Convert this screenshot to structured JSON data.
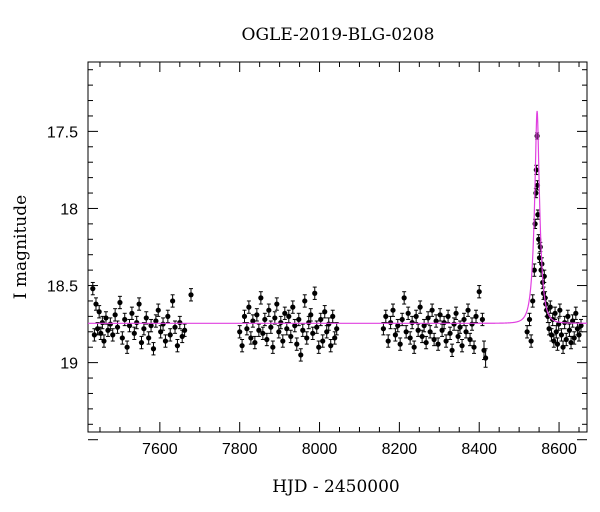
{
  "chart_data": {
    "type": "scatter",
    "title": "OGLE-2019-BLG-0208",
    "xlabel": "HJD - 2450000",
    "ylabel": "I magnitude",
    "xlim": [
      7420,
      8670
    ],
    "ylim": [
      19.45,
      17.05
    ],
    "y_inverted": true,
    "grid": false,
    "legend": "none",
    "x_ticks": [
      7600,
      7800,
      8000,
      8200,
      8400,
      8600
    ],
    "y_ticks": [
      17.5,
      18,
      18.5,
      19
    ],
    "x_tick_labels": [
      "7600",
      "7800",
      "8000",
      "8200",
      "8400",
      "8600"
    ],
    "y_tick_labels": [
      "17.5",
      "18",
      "18.5",
      "19"
    ],
    "colors": {
      "data": "#000000",
      "model": "#e040e0"
    },
    "model": {
      "type": "microlensing",
      "t0": 8545,
      "u0": 0.29,
      "tE": 14,
      "baseline_mag": 18.745
    },
    "series": [
      {
        "points": [
          [
            7432,
            18.52,
            0.04
          ],
          [
            7436,
            18.82,
            0.04
          ],
          [
            7440,
            18.62,
            0.04
          ],
          [
            7444,
            18.78,
            0.04
          ],
          [
            7448,
            18.67,
            0.04
          ],
          [
            7452,
            18.81,
            0.04
          ],
          [
            7456,
            18.74,
            0.04
          ],
          [
            7460,
            18.86,
            0.04
          ],
          [
            7465,
            18.71,
            0.04
          ],
          [
            7470,
            18.79,
            0.04
          ],
          [
            7476,
            18.75,
            0.04
          ],
          [
            7482,
            18.82,
            0.04
          ],
          [
            7488,
            18.69,
            0.04
          ],
          [
            7494,
            18.77,
            0.04
          ],
          [
            7500,
            18.61,
            0.04
          ],
          [
            7506,
            18.84,
            0.04
          ],
          [
            7512,
            18.72,
            0.04
          ],
          [
            7518,
            18.9,
            0.04
          ],
          [
            7524,
            18.76,
            0.04
          ],
          [
            7530,
            18.68,
            0.04
          ],
          [
            7536,
            18.81,
            0.04
          ],
          [
            7542,
            18.74,
            0.04
          ],
          [
            7548,
            18.62,
            0.04
          ],
          [
            7554,
            18.87,
            0.04
          ],
          [
            7560,
            18.78,
            0.04
          ],
          [
            7566,
            18.71,
            0.04
          ],
          [
            7572,
            18.84,
            0.04
          ],
          [
            7578,
            18.76,
            0.04
          ],
          [
            7584,
            18.91,
            0.04
          ],
          [
            7590,
            18.73,
            0.04
          ],
          [
            7596,
            18.66,
            0.04
          ],
          [
            7602,
            18.8,
            0.04
          ],
          [
            7608,
            18.75,
            0.04
          ],
          [
            7614,
            18.86,
            0.04
          ],
          [
            7620,
            18.7,
            0.04
          ],
          [
            7626,
            18.82,
            0.04
          ],
          [
            7632,
            18.6,
            0.04
          ],
          [
            7638,
            18.77,
            0.04
          ],
          [
            7644,
            18.89,
            0.04
          ],
          [
            7650,
            18.74,
            0.04
          ],
          [
            7656,
            18.83,
            0.04
          ],
          [
            7662,
            18.79,
            0.04
          ],
          [
            7678,
            18.56,
            0.04
          ],
          [
            7800,
            18.8,
            0.04
          ],
          [
            7806,
            18.89,
            0.04
          ],
          [
            7812,
            18.7,
            0.04
          ],
          [
            7818,
            18.78,
            0.04
          ],
          [
            7823,
            18.64,
            0.04
          ],
          [
            7828,
            18.84,
            0.04
          ],
          [
            7833,
            18.73,
            0.04
          ],
          [
            7838,
            18.87,
            0.04
          ],
          [
            7843,
            18.69,
            0.04
          ],
          [
            7848,
            18.79,
            0.04
          ],
          [
            7853,
            18.58,
            0.04
          ],
          [
            7858,
            18.81,
            0.04
          ],
          [
            7863,
            18.72,
            0.04
          ],
          [
            7868,
            18.85,
            0.04
          ],
          [
            7873,
            18.66,
            0.04
          ],
          [
            7878,
            18.77,
            0.04
          ],
          [
            7883,
            18.9,
            0.04
          ],
          [
            7888,
            18.71,
            0.04
          ],
          [
            7893,
            18.62,
            0.04
          ],
          [
            7898,
            18.8,
            0.04
          ],
          [
            7903,
            18.74,
            0.04
          ],
          [
            7908,
            18.86,
            0.04
          ],
          [
            7913,
            18.68,
            0.04
          ],
          [
            7918,
            18.78,
            0.04
          ],
          [
            7923,
            18.7,
            0.04
          ],
          [
            7928,
            18.83,
            0.04
          ],
          [
            7933,
            18.64,
            0.04
          ],
          [
            7938,
            18.76,
            0.04
          ],
          [
            7943,
            18.88,
            0.04
          ],
          [
            7948,
            18.72,
            0.04
          ],
          [
            7953,
            18.95,
            0.04
          ],
          [
            7958,
            18.79,
            0.04
          ],
          [
            7963,
            18.6,
            0.04
          ],
          [
            7968,
            18.84,
            0.04
          ],
          [
            7973,
            18.74,
            0.04
          ],
          [
            7978,
            18.69,
            0.04
          ],
          [
            7983,
            18.81,
            0.04
          ],
          [
            7988,
            18.55,
            0.04
          ],
          [
            7993,
            18.77,
            0.04
          ],
          [
            7998,
            18.9,
            0.04
          ],
          [
            8003,
            18.72,
            0.04
          ],
          [
            8008,
            18.86,
            0.04
          ],
          [
            8013,
            18.67,
            0.04
          ],
          [
            8018,
            18.8,
            0.04
          ],
          [
            8023,
            18.75,
            0.04
          ],
          [
            8028,
            18.89,
            0.04
          ],
          [
            8033,
            18.7,
            0.04
          ],
          [
            8038,
            18.84,
            0.04
          ],
          [
            8043,
            18.78,
            0.04
          ],
          [
            8160,
            18.78,
            0.04
          ],
          [
            8166,
            18.7,
            0.04
          ],
          [
            8172,
            18.86,
            0.04
          ],
          [
            8178,
            18.74,
            0.04
          ],
          [
            8184,
            18.66,
            0.04
          ],
          [
            8190,
            18.82,
            0.04
          ],
          [
            8196,
            18.76,
            0.04
          ],
          [
            8202,
            18.88,
            0.04
          ],
          [
            8207,
            18.72,
            0.04
          ],
          [
            8212,
            18.58,
            0.04
          ],
          [
            8217,
            18.8,
            0.04
          ],
          [
            8222,
            18.68,
            0.04
          ],
          [
            8227,
            18.84,
            0.04
          ],
          [
            8232,
            18.74,
            0.04
          ],
          [
            8237,
            18.9,
            0.04
          ],
          [
            8242,
            18.7,
            0.04
          ],
          [
            8247,
            18.79,
            0.04
          ],
          [
            8252,
            18.64,
            0.04
          ],
          [
            8257,
            18.83,
            0.04
          ],
          [
            8262,
            18.76,
            0.04
          ],
          [
            8267,
            18.87,
            0.04
          ],
          [
            8272,
            18.71,
            0.04
          ],
          [
            8277,
            18.8,
            0.04
          ],
          [
            8282,
            18.66,
            0.04
          ],
          [
            8287,
            18.85,
            0.04
          ],
          [
            8292,
            18.73,
            0.04
          ],
          [
            8297,
            18.88,
            0.04
          ],
          [
            8302,
            18.69,
            0.04
          ],
          [
            8307,
            18.79,
            0.04
          ],
          [
            8312,
            18.74,
            0.04
          ],
          [
            8317,
            18.86,
            0.04
          ],
          [
            8322,
            18.7,
            0.04
          ],
          [
            8327,
            18.81,
            0.04
          ],
          [
            8332,
            18.92,
            0.04
          ],
          [
            8337,
            18.75,
            0.04
          ],
          [
            8342,
            18.68,
            0.04
          ],
          [
            8347,
            18.83,
            0.04
          ],
          [
            8352,
            18.77,
            0.04
          ],
          [
            8357,
            18.89,
            0.04
          ],
          [
            8362,
            18.72,
            0.04
          ],
          [
            8367,
            18.8,
            0.04
          ],
          [
            8372,
            18.66,
            0.04
          ],
          [
            8377,
            18.85,
            0.04
          ],
          [
            8382,
            18.75,
            0.04
          ],
          [
            8387,
            18.9,
            0.04
          ],
          [
            8392,
            18.7,
            0.04
          ],
          [
            8400,
            18.54,
            0.04
          ],
          [
            8408,
            18.72,
            0.04
          ],
          [
            8412,
            18.92,
            0.06
          ],
          [
            8416,
            18.97,
            0.06
          ],
          [
            8520,
            18.8,
            0.04
          ],
          [
            8526,
            18.72,
            0.04
          ],
          [
            8530,
            18.86,
            0.04
          ],
          [
            8534,
            18.6,
            0.04
          ],
          [
            8538,
            18.4,
            0.04
          ],
          [
            8540,
            18.1,
            0.03
          ],
          [
            8542,
            17.9,
            0.03
          ],
          [
            8543,
            17.75,
            0.03
          ],
          [
            8545,
            17.53,
            0.02
          ],
          [
            8546,
            17.85,
            0.03
          ],
          [
            8547,
            18.04,
            0.03
          ],
          [
            8549,
            18.2,
            0.03
          ],
          [
            8551,
            18.32,
            0.03
          ],
          [
            8553,
            18.25,
            0.03
          ],
          [
            8555,
            18.4,
            0.04
          ],
          [
            8557,
            18.36,
            0.04
          ],
          [
            8559,
            18.48,
            0.04
          ],
          [
            8561,
            18.55,
            0.04
          ],
          [
            8563,
            18.44,
            0.04
          ],
          [
            8565,
            18.58,
            0.04
          ],
          [
            8567,
            18.62,
            0.04
          ],
          [
            8569,
            18.66,
            0.04
          ],
          [
            8572,
            18.7,
            0.04
          ],
          [
            8575,
            18.78,
            0.04
          ],
          [
            8578,
            18.64,
            0.04
          ],
          [
            8581,
            18.82,
            0.04
          ],
          [
            8584,
            18.72,
            0.04
          ],
          [
            8587,
            18.86,
            0.04
          ],
          [
            8590,
            18.68,
            0.04
          ],
          [
            8593,
            18.8,
            0.04
          ],
          [
            8596,
            18.88,
            0.04
          ],
          [
            8599,
            18.75,
            0.04
          ],
          [
            8602,
            18.66,
            0.04
          ],
          [
            8606,
            18.82,
            0.04
          ],
          [
            8610,
            18.9,
            0.04
          ],
          [
            8614,
            18.74,
            0.04
          ],
          [
            8618,
            18.85,
            0.04
          ],
          [
            8622,
            18.7,
            0.04
          ],
          [
            8626,
            18.79,
            0.04
          ],
          [
            8630,
            18.87,
            0.04
          ],
          [
            8634,
            18.73,
            0.04
          ],
          [
            8638,
            18.84,
            0.04
          ],
          [
            8642,
            18.68,
            0.04
          ],
          [
            8646,
            18.78,
            0.04
          ],
          [
            8650,
            18.82,
            0.04
          ],
          [
            8655,
            18.76,
            0.04
          ]
        ]
      }
    ]
  }
}
